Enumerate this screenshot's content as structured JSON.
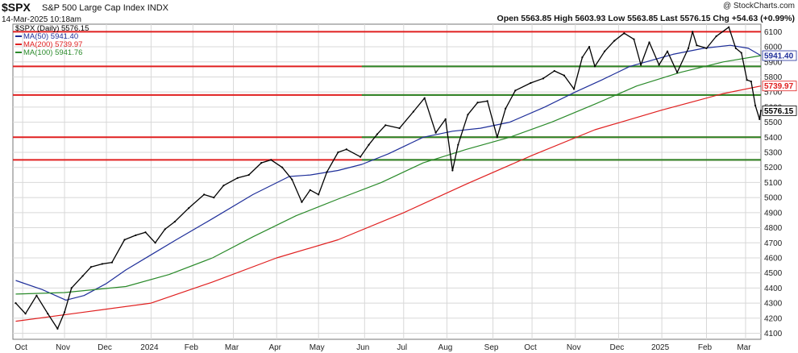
{
  "header": {
    "symbol": "$SPX",
    "description": "S&P 500 Large Cap Index",
    "exchange": "INDX",
    "datetime": "14-Mar-2025 10:18am",
    "credit": "@ StockCharts.com",
    "quote": "Open 5563.85   High 5603.93   Low 5563.85   Last 5576.15   Chg +54.63 (+0.99%)"
  },
  "legend": [
    {
      "label": "$SPX (Daily) 5576.15",
      "color": "#000000",
      "marker": "none"
    },
    {
      "label": "MA(50) 5941.40",
      "color": "#1f2f9a",
      "marker": "line"
    },
    {
      "label": "MA(200) 5739.97",
      "color": "#e02020",
      "marker": "line"
    },
    {
      "label": "MA(100) 5941.76",
      "color": "#2a8a2a",
      "marker": "line"
    }
  ],
  "chart_data": {
    "type": "line",
    "series": [
      {
        "name": "$SPX (Daily)",
        "color": "#000000",
        "dates": [
          "2023-09-27",
          "2023-10-04",
          "2023-10-12",
          "2023-10-20",
          "2023-10-27",
          "2023-11-01",
          "2023-11-06",
          "2023-11-14",
          "2023-11-20",
          "2023-11-28",
          "2023-12-05",
          "2023-12-14",
          "2023-12-22",
          "2023-12-29",
          "2024-01-05",
          "2024-01-12",
          "2024-01-19",
          "2024-01-29",
          "2024-02-09",
          "2024-02-16",
          "2024-02-23",
          "2024-03-04",
          "2024-03-12",
          "2024-03-21",
          "2024-03-28",
          "2024-04-05",
          "2024-04-12",
          "2024-04-19",
          "2024-04-25",
          "2024-05-01",
          "2024-05-07",
          "2024-05-15",
          "2024-05-21",
          "2024-05-31",
          "2024-06-06",
          "2024-06-12",
          "2024-06-18",
          "2024-06-28",
          "2024-07-08",
          "2024-07-16",
          "2024-07-24",
          "2024-07-31",
          "2024-08-05",
          "2024-08-09",
          "2024-08-16",
          "2024-08-23",
          "2024-08-30",
          "2024-09-06",
          "2024-09-12",
          "2024-09-19",
          "2024-09-30",
          "2024-10-09",
          "2024-10-17",
          "2024-10-24",
          "2024-10-31",
          "2024-11-06",
          "2024-11-11",
          "2024-11-15",
          "2024-11-22",
          "2024-11-29",
          "2024-12-06",
          "2024-12-13",
          "2024-12-18",
          "2024-12-24",
          "2024-12-31",
          "2025-01-06",
          "2025-01-13",
          "2025-01-21",
          "2025-01-24",
          "2025-01-27",
          "2025-02-03",
          "2025-02-10",
          "2025-02-19",
          "2025-02-24",
          "2025-02-28",
          "2025-03-04",
          "2025-03-07",
          "2025-03-10",
          "2025-03-13",
          "2025-03-14"
        ],
        "values": [
          4300,
          4230,
          4350,
          4230,
          4130,
          4240,
          4400,
          4480,
          4540,
          4560,
          4570,
          4720,
          4750,
          4770,
          4700,
          4790,
          4840,
          4930,
          5020,
          5000,
          5080,
          5130,
          5150,
          5230,
          5250,
          5200,
          5120,
          4970,
          5050,
          5020,
          5170,
          5300,
          5320,
          5270,
          5350,
          5420,
          5480,
          5460,
          5570,
          5660,
          5430,
          5520,
          5180,
          5350,
          5550,
          5630,
          5640,
          5400,
          5590,
          5710,
          5760,
          5790,
          5840,
          5810,
          5720,
          5930,
          6000,
          5870,
          5970,
          6040,
          6090,
          6050,
          5880,
          6030,
          5880,
          5970,
          5830,
          5990,
          6100,
          6010,
          5990,
          6070,
          6130,
          5990,
          5960,
          5780,
          5770,
          5610,
          5520,
          5576
        ]
      },
      {
        "name": "MA(50)",
        "color": "#1f2f9a",
        "dates": [
          "2023-09-27",
          "2023-10-16",
          "2023-11-02",
          "2023-11-15",
          "2023-12-01",
          "2023-12-15",
          "2024-01-02",
          "2024-01-20",
          "2024-02-15",
          "2024-03-15",
          "2024-04-10",
          "2024-04-25",
          "2024-05-15",
          "2024-06-01",
          "2024-06-20",
          "2024-07-15",
          "2024-08-05",
          "2024-08-25",
          "2024-09-15",
          "2024-10-10",
          "2024-11-01",
          "2024-11-20",
          "2024-12-10",
          "2025-01-10",
          "2025-02-01",
          "2025-02-20",
          "2025-03-05",
          "2025-03-14"
        ],
        "values": [
          4450,
          4390,
          4320,
          4350,
          4430,
          4520,
          4620,
          4720,
          4860,
          5020,
          5140,
          5150,
          5180,
          5220,
          5290,
          5400,
          5440,
          5460,
          5500,
          5600,
          5700,
          5780,
          5870,
          5950,
          5990,
          6010,
          5990,
          5941.4
        ]
      },
      {
        "name": "MA(200)",
        "color": "#e02020",
        "dates": [
          "2023-09-27",
          "2023-11-15",
          "2024-01-02",
          "2024-02-15",
          "2024-04-01",
          "2024-05-15",
          "2024-07-01",
          "2024-08-15",
          "2024-10-01",
          "2024-11-15",
          "2025-01-02",
          "2025-02-15",
          "2025-03-14"
        ],
        "values": [
          4180,
          4240,
          4300,
          4440,
          4600,
          4720,
          4900,
          5090,
          5280,
          5450,
          5580,
          5690,
          5739.97
        ]
      },
      {
        "name": "MA(100)",
        "color": "#2a8a2a",
        "dates": [
          "2023-09-27",
          "2023-11-01",
          "2023-12-15",
          "2024-01-15",
          "2024-02-15",
          "2024-03-15",
          "2024-04-15",
          "2024-05-15",
          "2024-06-15",
          "2024-07-15",
          "2024-08-15",
          "2024-09-15",
          "2024-10-15",
          "2024-11-15",
          "2024-12-15",
          "2025-01-15",
          "2025-02-15",
          "2025-03-14"
        ],
        "values": [
          4360,
          4370,
          4410,
          4490,
          4600,
          4740,
          4880,
          4990,
          5100,
          5230,
          5320,
          5400,
          5500,
          5620,
          5740,
          5830,
          5900,
          5941.76
        ]
      }
    ],
    "horizontal_lines": [
      {
        "value": 6100,
        "color": "#e02020"
      },
      {
        "value": 5870,
        "color": "#e02020"
      },
      {
        "value": 5680,
        "color": "#e02020"
      },
      {
        "value": 5400,
        "color": "#e02020"
      },
      {
        "value": 5250,
        "color": "#e02020"
      },
      {
        "value": 5870,
        "color": "#2a8a2a"
      },
      {
        "value": 5680,
        "color": "#2a8a2a"
      },
      {
        "value": 5400,
        "color": "#2a8a2a"
      },
      {
        "value": 5250,
        "color": "#2a8a2a"
      }
    ],
    "x_ticks": [
      {
        "label": "Oct",
        "date": "2023-10-02"
      },
      {
        "label": "Nov",
        "date": "2023-11-01"
      },
      {
        "label": "Dec",
        "date": "2023-12-01"
      },
      {
        "label": "2024",
        "date": "2024-01-02"
      },
      {
        "label": "Feb",
        "date": "2024-02-01"
      },
      {
        "label": "Mar",
        "date": "2024-03-01"
      },
      {
        "label": "Apr",
        "date": "2024-04-01"
      },
      {
        "label": "May",
        "date": "2024-05-01"
      },
      {
        "label": "Jun",
        "date": "2024-06-03"
      },
      {
        "label": "Jul",
        "date": "2024-07-01"
      },
      {
        "label": "Aug",
        "date": "2024-08-01"
      },
      {
        "label": "Sep",
        "date": "2024-09-03"
      },
      {
        "label": "Oct",
        "date": "2024-10-01"
      },
      {
        "label": "Nov",
        "date": "2024-11-01"
      },
      {
        "label": "Dec",
        "date": "2024-12-02"
      },
      {
        "label": "2025",
        "date": "2025-01-02"
      },
      {
        "label": "Feb",
        "date": "2025-02-03"
      },
      {
        "label": "Mar",
        "date": "2025-03-03"
      }
    ],
    "y_ticks": [
      4100,
      4200,
      4300,
      4400,
      4500,
      4600,
      4700,
      4800,
      4900,
      5000,
      5100,
      5200,
      5300,
      5400,
      5500,
      5600,
      5700,
      5800,
      5900,
      6000,
      6100
    ],
    "y_tick_labels": [
      "4100",
      "4200",
      "4300",
      "4400",
      "4500",
      "4600",
      "4700",
      "4800",
      "4900",
      "5000",
      "5100",
      "5200",
      "5300",
      "5400",
      "5500",
      "5600",
      "5700",
      "5800",
      "5900",
      "6000",
      "6100"
    ],
    "ylim": [
      4060,
      6150
    ],
    "xlim": [
      "2023-09-25",
      "2025-03-14"
    ],
    "grid": true,
    "legend_position": "top-left",
    "price_labels": [
      {
        "text": "5941.40",
        "value": 5941.4,
        "bg": "#ffffff",
        "color": "#1f2f9a"
      },
      {
        "text": "5739.97",
        "value": 5739.97,
        "bg": "#ffffff",
        "color": "#e02020"
      },
      {
        "text": "5576.15",
        "value": 5576.15,
        "bg": "#ffffff",
        "color": "#000000"
      }
    ]
  }
}
